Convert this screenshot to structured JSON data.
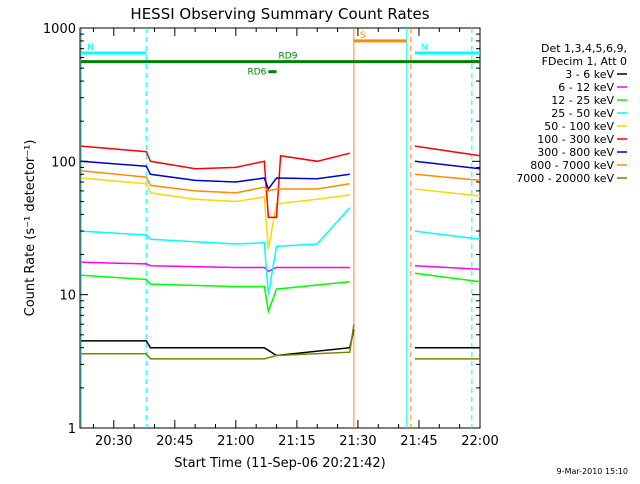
{
  "chart_data": {
    "type": "line",
    "title": "HESSI Observing Summary Count Rates",
    "xlabel": "Start Time (11-Sep-06 20:21:42)",
    "ylabel": "Count Rate (s⁻¹ detector⁻¹)",
    "y_scale": "log",
    "ylim": [
      1,
      1000
    ],
    "xlim": [
      "20:21:42",
      "22:00"
    ],
    "x_ticks": [
      "20:30",
      "20:45",
      "21:00",
      "21:15",
      "21:30",
      "21:45",
      "22:00"
    ],
    "y_ticks": [
      "1",
      "10",
      "100",
      "1000"
    ],
    "legend_header": [
      "Det 1,3,4,5,6,9,",
      "FDecim 1, Att 0"
    ],
    "legend_position": "right",
    "series": [
      {
        "name": "3 - 6 keV",
        "color": "#000000",
        "x": [
          "20:22",
          "20:38",
          "20:39",
          "21:07",
          "21:10",
          "21:28",
          "21:29",
          "21:43",
          "21:44",
          "22:00"
        ],
        "y": [
          4.5,
          4.5,
          4.0,
          4.0,
          3.5,
          4.0,
          5.5,
          null,
          4.0,
          4.0
        ]
      },
      {
        "name": "6 - 12 keV",
        "color": "#ff00ff",
        "x": [
          "20:22",
          "20:38",
          "20:39",
          "21:00",
          "21:07",
          "21:08",
          "21:10",
          "21:28",
          "21:43",
          "21:44",
          "22:00"
        ],
        "y": [
          17.5,
          17.0,
          16.5,
          16.0,
          16.0,
          15.0,
          16.0,
          16.0,
          null,
          16.5,
          15.5
        ]
      },
      {
        "name": "12 - 25 keV",
        "color": "#00ff00",
        "x": [
          "20:22",
          "20:38",
          "20:39",
          "21:00",
          "21:07",
          "21:08",
          "21:10",
          "21:28",
          "21:43",
          "21:44",
          "22:00"
        ],
        "y": [
          14.0,
          13.0,
          12.0,
          11.5,
          11.5,
          7.5,
          11.0,
          12.5,
          null,
          14.5,
          12.5
        ]
      },
      {
        "name": "25 - 50 keV",
        "color": "#00ffff",
        "x": [
          "20:22",
          "20:38",
          "20:39",
          "21:00",
          "21:07",
          "21:08",
          "21:10",
          "21:20",
          "21:28",
          "21:43",
          "21:44",
          "22:00"
        ],
        "y": [
          30.0,
          28.0,
          26.0,
          24.0,
          24.5,
          10.0,
          23.0,
          24.0,
          45.0,
          null,
          30.0,
          26.0
        ]
      },
      {
        "name": "50 - 100 keV",
        "color": "#ffd700",
        "x": [
          "20:22",
          "20:38",
          "20:39",
          "20:50",
          "21:00",
          "21:07",
          "21:08",
          "21:10",
          "21:20",
          "21:28",
          "21:43",
          "21:44",
          "22:00"
        ],
        "y": [
          75.0,
          68.0,
          58.0,
          52.0,
          50.0,
          54.0,
          22.0,
          48.0,
          52.0,
          56.0,
          null,
          62.0,
          55.0
        ]
      },
      {
        "name": "100 - 300 keV",
        "color": "#ff0000",
        "x": [
          "20:22",
          "20:38",
          "20:39",
          "20:50",
          "21:00",
          "21:07",
          "21:08",
          "21:10",
          "21:11",
          "21:20",
          "21:28",
          "21:43",
          "21:44",
          "22:00"
        ],
        "y": [
          130.0,
          118.0,
          100.0,
          88.0,
          90.0,
          100.0,
          38.0,
          38.0,
          110.0,
          100.0,
          115.0,
          null,
          130.0,
          110.0
        ]
      },
      {
        "name": "300 - 800 keV",
        "color": "#0000cd",
        "x": [
          "20:22",
          "20:38",
          "20:39",
          "20:50",
          "21:00",
          "21:07",
          "21:08",
          "21:10",
          "21:20",
          "21:28",
          "21:43",
          "21:44",
          "22:00"
        ],
        "y": [
          100.0,
          92.0,
          80.0,
          72.0,
          70.0,
          75.0,
          62.0,
          75.0,
          74.0,
          80.0,
          null,
          100.0,
          88.0
        ]
      },
      {
        "name": "800 - 7000 keV",
        "color": "#ff8c00",
        "x": [
          "20:22",
          "20:38",
          "20:39",
          "20:50",
          "21:00",
          "21:07",
          "21:08",
          "21:10",
          "21:20",
          "21:28",
          "21:43",
          "21:44",
          "22:00"
        ],
        "y": [
          85.0,
          76.0,
          66.0,
          60.0,
          58.0,
          64.0,
          60.0,
          62.0,
          62.0,
          68.0,
          null,
          80.0,
          72.0
        ]
      },
      {
        "name": "7000 - 20000 keV",
        "color": "#808000",
        "x": [
          "20:22",
          "20:38",
          "20:39",
          "21:07",
          "21:10",
          "21:28",
          "21:29",
          "21:43",
          "21:44",
          "22:00"
        ],
        "y": [
          3.6,
          3.6,
          3.3,
          3.3,
          3.5,
          3.7,
          6.0,
          null,
          3.3,
          3.3
        ]
      }
    ],
    "annotations": [
      {
        "label": "N",
        "color": "#00ffff",
        "start": "20:22",
        "end": "20:38",
        "level": 650
      },
      {
        "label": "N",
        "color": "#00ffff",
        "start": "21:44",
        "end": "22:00",
        "level": 650
      },
      {
        "label": "S",
        "color": "#ff8c00",
        "start": "21:29",
        "end": "21:42",
        "level": 800
      },
      {
        "label": "RD6",
        "color": "#008000",
        "start": "21:08",
        "end": "21:10",
        "level": 470
      },
      {
        "label": "RD9",
        "color": "#008000",
        "start": "20:22",
        "end": "22:00",
        "level": 560
      }
    ],
    "vertical_markers": [
      {
        "time": "20:22",
        "color": "#00ffff",
        "style": "solid"
      },
      {
        "time": "20:38",
        "color": "#00ffff",
        "style": "dashed"
      },
      {
        "time": "21:29",
        "color": "#ff8c00",
        "style": "solid"
      },
      {
        "time": "21:42",
        "color": "#00ffff",
        "style": "solid"
      },
      {
        "time": "21:43",
        "color": "#ff8c00",
        "style": "dashed"
      },
      {
        "time": "21:58",
        "color": "#00ffff",
        "style": "dashed"
      }
    ],
    "grid": false
  },
  "timestamp": "9-Mar-2010 15:10"
}
